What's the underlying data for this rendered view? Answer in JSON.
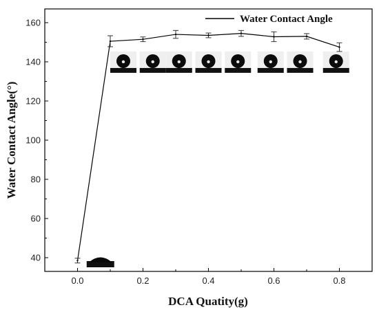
{
  "chart_data": {
    "type": "line",
    "title": "",
    "xlabel": "DCA Quatity(g)",
    "ylabel": "Water Contact Angle(°)",
    "xlim": [
      -0.1,
      0.9
    ],
    "ylim": [
      33,
      167
    ],
    "xticks": [
      "0.0",
      "0.2",
      "0.4",
      "0.6",
      "0.8"
    ],
    "xtick_values": [
      0.0,
      0.2,
      0.4,
      0.6,
      0.8
    ],
    "yticks": [
      "40",
      "60",
      "80",
      "100",
      "120",
      "140",
      "160"
    ],
    "ytick_values": [
      40,
      60,
      80,
      100,
      120,
      140,
      160
    ],
    "grid": false,
    "legend_position": "top-right",
    "series": [
      {
        "name": "Water Contact Angle",
        "color": "#000000",
        "x": [
          0.0,
          0.1,
          0.2,
          0.3,
          0.4,
          0.5,
          0.6,
          0.7,
          0.8
        ],
        "y": [
          38.5,
          150.5,
          151.5,
          154.0,
          153.5,
          154.5,
          152.8,
          153.0,
          147.5
        ],
        "error": [
          1.2,
          2.8,
          1.2,
          2.0,
          1.2,
          1.5,
          2.5,
          1.4,
          2.2
        ]
      }
    ],
    "droplet_images": [
      {
        "at_x": 0.07,
        "shape": "flat-spread"
      },
      {
        "at_x": 0.14,
        "shape": "sphere"
      },
      {
        "at_x": 0.23,
        "shape": "sphere"
      },
      {
        "at_x": 0.31,
        "shape": "sphere"
      },
      {
        "at_x": 0.4,
        "shape": "sphere"
      },
      {
        "at_x": 0.49,
        "shape": "sphere"
      },
      {
        "at_x": 0.59,
        "shape": "sphere"
      },
      {
        "at_x": 0.68,
        "shape": "sphere"
      },
      {
        "at_x": 0.79,
        "shape": "sphere"
      }
    ]
  }
}
